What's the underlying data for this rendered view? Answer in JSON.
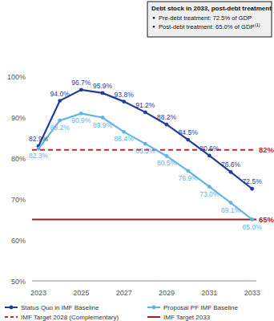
{
  "chart_data": {
    "type": "line",
    "x": [
      2023,
      2024,
      2025,
      2026,
      2027,
      2028,
      2029,
      2030,
      2031,
      2032,
      2033
    ],
    "xlim": [
      2022.7,
      2033.2
    ],
    "xticks": [
      2023,
      2025,
      2027,
      2029,
      2031,
      2033
    ],
    "ylim": [
      50,
      100
    ],
    "yticks": [
      {
        "value": 50,
        "label": "50%"
      },
      {
        "value": 60,
        "label": "60%"
      },
      {
        "value": 70,
        "label": "70%"
      },
      {
        "value": 80,
        "label": "80%"
      },
      {
        "value": 90,
        "label": "90%"
      },
      {
        "value": 100,
        "label": "100%"
      }
    ],
    "grid": false,
    "data_labels": true,
    "legend": "bottom",
    "series": [
      {
        "name": "Status Quo in IMF Baseline",
        "color": "#1f3d99",
        "marker": "circle",
        "values": [
          82.9,
          94.0,
          96.7,
          95.9,
          93.8,
          91.2,
          88.2,
          84.5,
          80.6,
          76.6,
          72.5
        ],
        "value_labels": [
          "82.9%",
          "94.0%",
          "96.7%",
          "95.9%",
          "93.8%",
          "91.2%",
          "88.2%",
          "84.5%",
          "80.6%",
          "76.6%",
          "72.5%"
        ]
      },
      {
        "name": "Proposal PF IMF Baseline",
        "color": "#62b3e8",
        "marker": "circle",
        "values": [
          82.3,
          89.2,
          90.9,
          89.9,
          86.4,
          83.5,
          80.5,
          76.9,
          73.0,
          69.1,
          65.0
        ],
        "value_labels": [
          "82.3%",
          "89.2%",
          "90.9%",
          "89.9%",
          "86.4%",
          "83.5%",
          "80.5%",
          "76.9%",
          "73.0%",
          "69.1%",
          "65.0%"
        ]
      }
    ],
    "reference_lines": [
      {
        "name": "IMF Target 2028 (Complementary)",
        "value": 82,
        "label": "82%",
        "color": "#c0282d",
        "line_style": "dashed"
      },
      {
        "name": "IMF Target 2033",
        "value": 65,
        "label": "65%",
        "color": "#a11d22",
        "line_style": "solid"
      }
    ],
    "annotation": {
      "title": "Debt stock in 2033, post-debt treatment",
      "items": [
        {
          "text": "Pre-debt treatment: 72.5% of GDP"
        },
        {
          "text": "Post-debt treatment: 65.0% of GDP",
          "footnote": "(1)"
        }
      ]
    }
  }
}
